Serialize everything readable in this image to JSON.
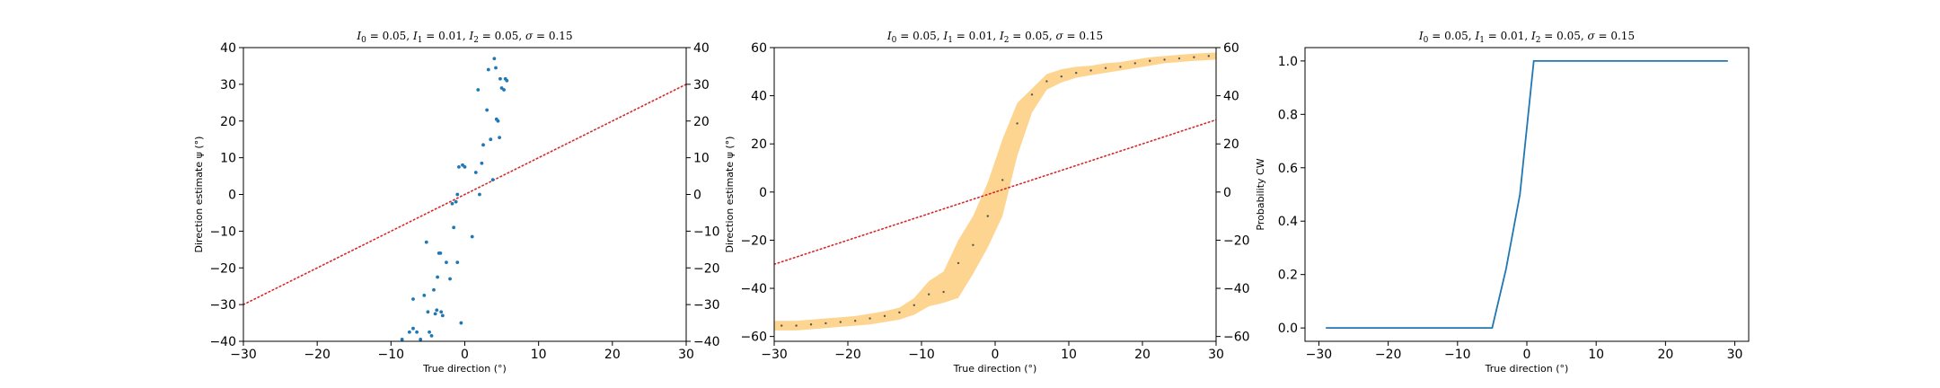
{
  "chart_data": [
    {
      "type": "scatter",
      "title": {
        "parts": [
          {
            "text": "I",
            "style": "italic"
          },
          {
            "text": "0",
            "style": "sub"
          },
          {
            "text": " = 0.05, ",
            "style": "normal"
          },
          {
            "text": "I",
            "style": "italic"
          },
          {
            "text": "1",
            "style": "sub"
          },
          {
            "text": " = 0.01, ",
            "style": "normal"
          },
          {
            "text": "I",
            "style": "italic"
          },
          {
            "text": "2",
            "style": "sub"
          },
          {
            "text": " = 0.05, ",
            "style": "normal"
          },
          {
            "text": "σ",
            "style": "italic"
          },
          {
            "text": " = 0.15",
            "style": "normal"
          }
        ]
      },
      "xlabel": "True direction (°)",
      "ylabel": "Direction estimate ψ (°)",
      "xlim": [
        -30,
        30
      ],
      "ylim": [
        -40,
        40
      ],
      "xticks": [
        -30,
        -20,
        -10,
        0,
        10,
        20,
        30
      ],
      "yticks": [
        -40,
        -30,
        -20,
        -10,
        0,
        10,
        20,
        30,
        40
      ],
      "right_axis_ticks": true,
      "reference_line": {
        "style": "dotted",
        "color": "#d62728",
        "x": [
          -30,
          30
        ],
        "y": [
          -30,
          30
        ]
      },
      "points": {
        "color": "#1f77b4",
        "x": [
          -8.5,
          -7.5,
          -7.0,
          -6.5,
          -6.0,
          -5.5,
          -5.0,
          -4.8,
          -4.5,
          -4.2,
          -4.0,
          -3.8,
          -3.7,
          -3.5,
          -3.3,
          -3.0,
          -2.5,
          -2.0,
          -1.7,
          -1.5,
          -1.2,
          -1.0,
          -0.8,
          -0.5,
          -0.3,
          0.0,
          1.0,
          1.5,
          1.8,
          2.0,
          2.3,
          2.5,
          3.0,
          3.2,
          3.5,
          3.8,
          4.0,
          4.2,
          4.3,
          4.5,
          4.7,
          4.8,
          5.0,
          5.3,
          5.5,
          5.7,
          -7.0,
          -5.2,
          -3.2,
          -1.0
        ],
        "y": [
          -39.5,
          -37.5,
          -28.5,
          -37.5,
          -39.5,
          -27.5,
          -32.0,
          -37.5,
          -38.5,
          -26.0,
          -32.5,
          -31.5,
          -22.5,
          -16.0,
          -16.0,
          -33.0,
          -18.5,
          -23.0,
          -2.5,
          -9.0,
          -2.0,
          -18.5,
          7.5,
          -35.0,
          8.0,
          7.5,
          -11.5,
          6.0,
          28.5,
          0.0,
          8.5,
          13.5,
          23.0,
          34.0,
          15.0,
          4.0,
          37.0,
          34.5,
          20.5,
          20.0,
          15.5,
          31.5,
          29.0,
          28.5,
          31.5,
          31.0,
          -36.5,
          -13.0,
          -32.0,
          0.0
        ]
      }
    },
    {
      "type": "line",
      "title": {
        "parts": [
          {
            "text": "I",
            "style": "italic"
          },
          {
            "text": "0",
            "style": "sub"
          },
          {
            "text": " = 0.05, ",
            "style": "normal"
          },
          {
            "text": "I",
            "style": "italic"
          },
          {
            "text": "1",
            "style": "sub"
          },
          {
            "text": " = 0.01, ",
            "style": "normal"
          },
          {
            "text": "I",
            "style": "italic"
          },
          {
            "text": "2",
            "style": "sub"
          },
          {
            "text": " = 0.05, ",
            "style": "normal"
          },
          {
            "text": "σ",
            "style": "italic"
          },
          {
            "text": " = 0.15",
            "style": "normal"
          }
        ]
      },
      "xlabel": "True direction (°)",
      "ylabel": "Direction estimate ψ (°)",
      "xlim": [
        -30,
        30
      ],
      "ylim": [
        -62,
        60
      ],
      "xticks": [
        -30,
        -20,
        -10,
        0,
        10,
        20,
        30
      ],
      "yticks": [
        -60,
        -40,
        -20,
        0,
        20,
        40,
        60
      ],
      "right_axis_ticks": true,
      "reference_line": {
        "style": "dotted",
        "color": "#d62728",
        "x": [
          -30,
          30
        ],
        "y": [
          -30,
          30
        ]
      },
      "mean": {
        "color": "#555555",
        "x": [
          -29,
          -27,
          -25,
          -23,
          -21,
          -19,
          -17,
          -15,
          -13,
          -11,
          -9,
          -7,
          -5,
          -3,
          -1,
          1,
          3,
          5,
          7,
          9,
          11,
          13,
          15,
          17,
          19,
          21,
          23,
          25,
          27,
          29
        ],
        "y": [
          -55.5,
          -55.5,
          -55.0,
          -54.5,
          -54.0,
          -53.5,
          -52.5,
          -51.5,
          -50.0,
          -47.0,
          -42.5,
          -41.5,
          -29.5,
          -22.0,
          -10.0,
          5.0,
          28.5,
          40.5,
          46.0,
          48.0,
          49.5,
          50.5,
          51.5,
          52.0,
          53.5,
          54.5,
          55.0,
          55.5,
          56.0,
          56.5
        ]
      },
      "band": {
        "color": "#fdd591",
        "x": [
          -30,
          -27,
          -25,
          -23,
          -21,
          -19,
          -17,
          -15,
          -13,
          -11,
          -9,
          -7,
          -5,
          -3,
          -1,
          1,
          3,
          5,
          7,
          9,
          11,
          13,
          15,
          17,
          19,
          21,
          23,
          25,
          27,
          30
        ],
        "lower": [
          -57.5,
          -57.5,
          -57.0,
          -56.5,
          -56.0,
          -55.5,
          -55.0,
          -54.0,
          -53.0,
          -51.0,
          -47.5,
          -46.0,
          -44.0,
          -34.0,
          -23.0,
          -10.0,
          15.0,
          33.0,
          42.5,
          45.5,
          47.5,
          48.5,
          49.5,
          50.5,
          51.5,
          52.5,
          53.5,
          54.0,
          54.5,
          55.0
        ],
        "upper": [
          -53.5,
          -53.5,
          -53.0,
          -52.5,
          -52.0,
          -51.5,
          -50.5,
          -49.5,
          -48.0,
          -44.0,
          -37.0,
          -33.0,
          -20.0,
          -10.0,
          4.0,
          22.0,
          37.0,
          43.0,
          49.0,
          51.0,
          52.0,
          52.5,
          53.5,
          54.0,
          55.0,
          56.0,
          56.5,
          57.0,
          57.5,
          58.0
        ]
      }
    },
    {
      "type": "line",
      "title": {
        "parts": [
          {
            "text": "I",
            "style": "italic"
          },
          {
            "text": "0",
            "style": "sub"
          },
          {
            "text": " = 0.05, ",
            "style": "normal"
          },
          {
            "text": "I",
            "style": "italic"
          },
          {
            "text": "1",
            "style": "sub"
          },
          {
            "text": " = 0.01, ",
            "style": "normal"
          },
          {
            "text": "I",
            "style": "italic"
          },
          {
            "text": "2",
            "style": "sub"
          },
          {
            "text": " = 0.05, ",
            "style": "normal"
          },
          {
            "text": "σ",
            "style": "italic"
          },
          {
            "text": " = 0.15",
            "style": "normal"
          }
        ]
      },
      "xlabel": "True direction (°)",
      "ylabel": "Probability CW",
      "xlim": [
        -32,
        32
      ],
      "ylim": [
        -0.05,
        1.05
      ],
      "xticks": [
        -30,
        -20,
        -10,
        0,
        10,
        20,
        30
      ],
      "yticks": [
        0.0,
        0.2,
        0.4,
        0.6,
        0.8,
        1.0
      ],
      "ytick_labels": [
        "0.0",
        "0.2",
        "0.4",
        "0.6",
        "0.8",
        "1.0"
      ],
      "right_axis_ticks": false,
      "series": [
        {
          "color": "#1f77b4",
          "x": [
            -29,
            -5,
            -3,
            -1,
            1,
            29
          ],
          "y": [
            0.0,
            0.0,
            0.22,
            0.5,
            1.0,
            1.0
          ]
        }
      ]
    }
  ]
}
